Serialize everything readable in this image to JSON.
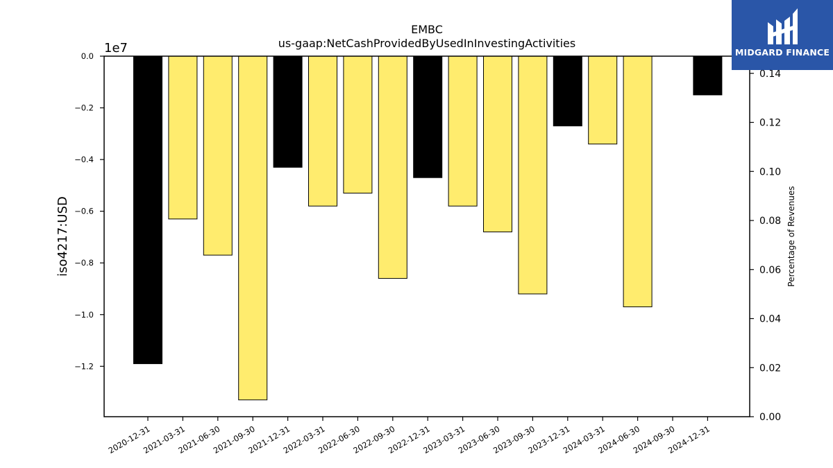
{
  "brand": {
    "name": "MIDGARD FINANCE",
    "color": "#2a56a8"
  },
  "chart_data": {
    "type": "bar",
    "title": "EMBC",
    "subtitle": "us-gaap:NetCashProvidedByUsedInInvestingActivities",
    "ylabel": "iso4217:USD",
    "y_scale_label": "1e7",
    "y2label": "Percentage of Revenues",
    "categories": [
      "2020-12-31",
      "2021-03-31",
      "2021-06-30",
      "2021-09-30",
      "2021-12-31",
      "2022-03-31",
      "2022-06-30",
      "2022-09-30",
      "2022-12-31",
      "2023-03-31",
      "2023-06-30",
      "2023-09-30",
      "2023-12-31",
      "2024-03-31",
      "2024-06-30",
      "2024-09-30",
      "2024-12-31"
    ],
    "values": [
      -11900000,
      -6300000,
      -7700000,
      -13300000,
      -4300000,
      -5800000,
      -5300000,
      -8600000,
      -4700000,
      -5800000,
      -6800000,
      -9200000,
      -2700000,
      -3400000,
      -9700000,
      null,
      -1500000
    ],
    "bar_colors": [
      "#000000",
      "#ffec6e",
      "#ffec6e",
      "#ffec6e",
      "#000000",
      "#ffec6e",
      "#ffec6e",
      "#ffec6e",
      "#000000",
      "#ffec6e",
      "#ffec6e",
      "#ffec6e",
      "#000000",
      "#ffec6e",
      "#ffec6e",
      "#ffec6e",
      "#000000"
    ],
    "ylim": [
      -13950000,
      0
    ],
    "yticks": [
      0,
      -2000000,
      -4000000,
      -6000000,
      -8000000,
      -10000000,
      -12000000
    ],
    "ytick_labels": [
      "0.0",
      "−0.2",
      "−0.4",
      "−0.6",
      "−0.8",
      "−1.0",
      "−1.2"
    ],
    "y2lim": [
      0,
      0.147
    ],
    "y2ticks": [
      0,
      0.02,
      0.04,
      0.06,
      0.08,
      0.1,
      0.12,
      0.14
    ],
    "y2tick_labels": [
      "0.00",
      "0.02",
      "0.04",
      "0.06",
      "0.08",
      "0.10",
      "0.12",
      "0.14"
    ],
    "grid": false,
    "legend": "none"
  }
}
